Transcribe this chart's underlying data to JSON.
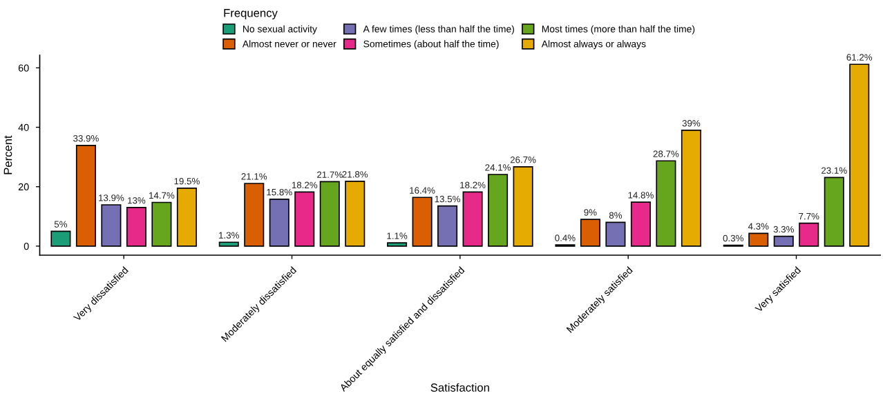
{
  "chart_data": {
    "type": "bar",
    "xlabel": "Satisfaction",
    "ylabel": "Percent",
    "legend_title": "Frequency",
    "legend": "top",
    "categories": [
      "Very dissatisfied",
      "Moderately dissatisfied",
      "About equally satisfied and dissatisfied",
      "Moderately satisfied",
      "Very satisfied"
    ],
    "ylim": [
      -3.06,
      64.26
    ],
    "yticks": [
      0,
      20,
      40,
      60
    ],
    "grid": false,
    "series": [
      {
        "name": "No sexual activity",
        "color": "#1b9e77",
        "values": [
          5,
          1.3,
          1.1,
          0.4,
          0.3
        ],
        "value_labels": [
          "5%",
          "1.3%",
          "1.1%",
          "0.4%",
          "0.3%"
        ]
      },
      {
        "name": "Almost never or never",
        "color": "#d95f02",
        "values": [
          33.9,
          21.1,
          16.4,
          9,
          4.3
        ],
        "value_labels": [
          "33.9%",
          "21.1%",
          "16.4%",
          "9%",
          "4.3%"
        ]
      },
      {
        "name": "A few times (less than half the time)",
        "color": "#7570b3",
        "values": [
          13.9,
          15.8,
          13.5,
          8,
          3.3
        ],
        "value_labels": [
          "13.9%",
          "15.8%",
          "13.5%",
          "8%",
          "3.3%"
        ]
      },
      {
        "name": "Sometimes (about half the time)",
        "color": "#e7298a",
        "values": [
          13,
          18.2,
          18.2,
          14.8,
          7.7
        ],
        "value_labels": [
          "13%",
          "18.2%",
          "18.2%",
          "14.8%",
          "7.7%"
        ]
      },
      {
        "name": "Most times (more than half the time)",
        "color": "#66a61e",
        "values": [
          14.7,
          21.7,
          24.1,
          28.7,
          23.1
        ],
        "value_labels": [
          "14.7%",
          "21.7%",
          "24.1%",
          "28.7%",
          "23.1%"
        ]
      },
      {
        "name": "Almost always or always",
        "color": "#e6ab02",
        "values": [
          19.5,
          21.8,
          26.7,
          39,
          61.2
        ],
        "value_labels": [
          "19.5%",
          "21.8%",
          "26.7%",
          "39%",
          "61.2%"
        ]
      }
    ]
  }
}
